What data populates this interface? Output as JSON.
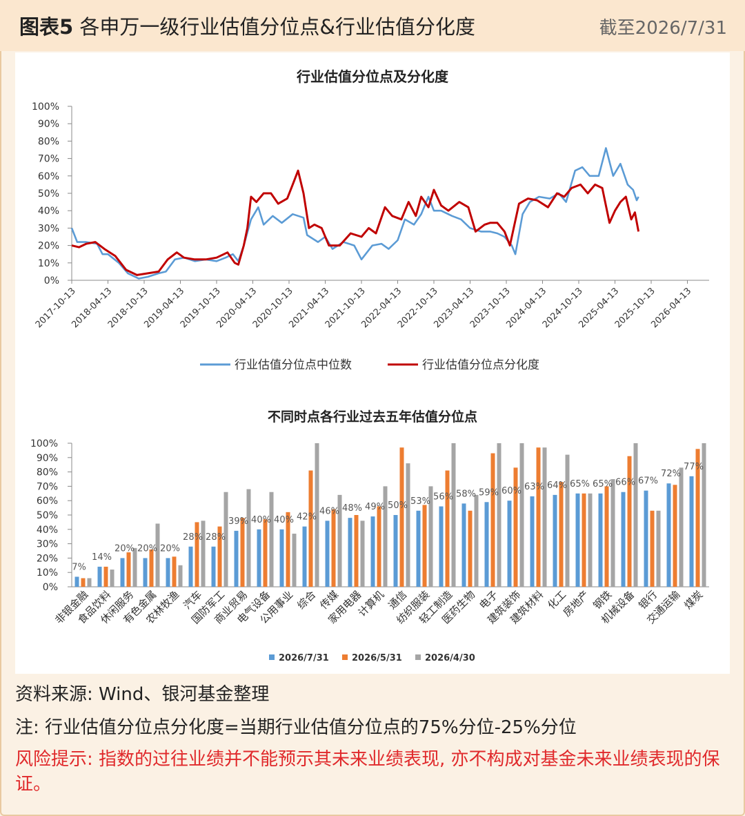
{
  "header": {
    "title_bold": "图表5",
    "title_rest": " 各申万一级行业估值分位点&行业估值分化度",
    "date": "截至2026/7/31"
  },
  "colors": {
    "median": "#5b9bd5",
    "dispersion": "#c00000",
    "s1": "#5b9bd5",
    "s2": "#ed7d31",
    "s3": "#a5a5a5"
  },
  "chart_data": [
    {
      "type": "line",
      "title": "行业估值分位点及分化度",
      "ylim": [
        0,
        100
      ],
      "y_ticks": [
        "0%",
        "10%",
        "20%",
        "30%",
        "40%",
        "50%",
        "60%",
        "70%",
        "80%",
        "90%",
        "100%"
      ],
      "x_ticks": [
        "2017-10-13",
        "2018-04-13",
        "2018-10-13",
        "2019-04-13",
        "2019-10-13",
        "2020-04-13",
        "2020-10-13",
        "2021-04-13",
        "2021-10-13",
        "2022-04-13",
        "2022-10-13",
        "2023-04-13",
        "2023-10-13",
        "2024-04-13",
        "2024-10-13",
        "2025-04-13",
        "2025-10-13",
        "2026-04-13"
      ],
      "legend_position": "bottom",
      "series": [
        {
          "name": "行业估值分位点中位数",
          "points": [
            [
              0,
              30
            ],
            [
              0.15,
              22
            ],
            [
              0.4,
              22
            ],
            [
              0.7,
              21
            ],
            [
              0.85,
              15
            ],
            [
              1,
              15
            ],
            [
              1.3,
              10
            ],
            [
              1.55,
              4
            ],
            [
              1.85,
              1
            ],
            [
              2.1,
              2
            ],
            [
              2.4,
              4
            ],
            [
              2.6,
              5
            ],
            [
              2.85,
              12
            ],
            [
              3.1,
              13
            ],
            [
              3.4,
              11
            ],
            [
              3.7,
              12
            ],
            [
              4.0,
              11
            ],
            [
              4.25,
              13
            ],
            [
              4.45,
              15
            ],
            [
              4.6,
              11
            ],
            [
              4.75,
              20
            ],
            [
              4.95,
              35
            ],
            [
              5.15,
              42
            ],
            [
              5.3,
              32
            ],
            [
              5.55,
              37
            ],
            [
              5.8,
              33
            ],
            [
              6.1,
              38
            ],
            [
              6.4,
              36
            ],
            [
              6.5,
              26
            ],
            [
              6.8,
              22
            ],
            [
              7.0,
              25
            ],
            [
              7.2,
              18
            ],
            [
              7.5,
              22
            ],
            [
              7.8,
              20
            ],
            [
              8.0,
              12
            ],
            [
              8.3,
              20
            ],
            [
              8.55,
              21
            ],
            [
              8.75,
              18
            ],
            [
              9.0,
              23
            ],
            [
              9.2,
              35
            ],
            [
              9.45,
              32
            ],
            [
              9.65,
              38
            ],
            [
              9.85,
              48
            ],
            [
              10.0,
              40
            ],
            [
              10.2,
              40
            ],
            [
              10.5,
              37
            ],
            [
              10.75,
              35
            ],
            [
              11.0,
              30
            ],
            [
              11.3,
              28
            ],
            [
              11.55,
              28
            ],
            [
              11.75,
              27
            ],
            [
              11.95,
              25
            ],
            [
              12.15,
              20
            ],
            [
              12.25,
              15
            ],
            [
              12.45,
              38
            ],
            [
              12.65,
              45
            ],
            [
              12.9,
              48
            ],
            [
              13.2,
              47
            ],
            [
              13.45,
              50
            ],
            [
              13.65,
              45
            ],
            [
              13.9,
              63
            ],
            [
              14.1,
              65
            ],
            [
              14.3,
              60
            ],
            [
              14.55,
              60
            ],
            [
              14.75,
              76
            ],
            [
              14.95,
              60
            ],
            [
              15.15,
              67
            ],
            [
              15.35,
              55
            ],
            [
              15.5,
              52
            ],
            [
              15.6,
              46
            ],
            [
              15.65,
              48
            ]
          ]
        },
        {
          "name": "行业估值分位点分化度",
          "points": [
            [
              0,
              20
            ],
            [
              0.2,
              19
            ],
            [
              0.4,
              21
            ],
            [
              0.65,
              22
            ],
            [
              0.9,
              18
            ],
            [
              1.2,
              14
            ],
            [
              1.5,
              6
            ],
            [
              1.8,
              3
            ],
            [
              2.1,
              4
            ],
            [
              2.4,
              5
            ],
            [
              2.65,
              12
            ],
            [
              2.9,
              16
            ],
            [
              3.1,
              13
            ],
            [
              3.4,
              12
            ],
            [
              3.7,
              12
            ],
            [
              4.0,
              13
            ],
            [
              4.3,
              16
            ],
            [
              4.5,
              10
            ],
            [
              4.6,
              9
            ],
            [
              4.75,
              20
            ],
            [
              4.85,
              30
            ],
            [
              4.95,
              48
            ],
            [
              5.1,
              45
            ],
            [
              5.3,
              50
            ],
            [
              5.5,
              50
            ],
            [
              5.7,
              44
            ],
            [
              5.95,
              47
            ],
            [
              6.1,
              55
            ],
            [
              6.25,
              63
            ],
            [
              6.4,
              50
            ],
            [
              6.55,
              30
            ],
            [
              6.7,
              32
            ],
            [
              6.9,
              30
            ],
            [
              7.1,
              20
            ],
            [
              7.4,
              20
            ],
            [
              7.7,
              27
            ],
            [
              8.0,
              25
            ],
            [
              8.2,
              30
            ],
            [
              8.4,
              27
            ],
            [
              8.65,
              42
            ],
            [
              8.85,
              37
            ],
            [
              9.1,
              35
            ],
            [
              9.3,
              45
            ],
            [
              9.5,
              37
            ],
            [
              9.65,
              48
            ],
            [
              9.85,
              42
            ],
            [
              10.0,
              52
            ],
            [
              10.2,
              43
            ],
            [
              10.4,
              40
            ],
            [
              10.7,
              45
            ],
            [
              10.95,
              42
            ],
            [
              11.15,
              28
            ],
            [
              11.4,
              32
            ],
            [
              11.55,
              33
            ],
            [
              11.75,
              33
            ],
            [
              11.95,
              28
            ],
            [
              12.1,
              20
            ],
            [
              12.35,
              44
            ],
            [
              12.6,
              47
            ],
            [
              12.85,
              46
            ],
            [
              13.15,
              42
            ],
            [
              13.4,
              50
            ],
            [
              13.6,
              48
            ],
            [
              13.8,
              53
            ],
            [
              14.05,
              55
            ],
            [
              14.25,
              50
            ],
            [
              14.45,
              55
            ],
            [
              14.65,
              53
            ],
            [
              14.85,
              33
            ],
            [
              15.0,
              40
            ],
            [
              15.15,
              45
            ],
            [
              15.3,
              48
            ],
            [
              15.45,
              35
            ],
            [
              15.55,
              39
            ],
            [
              15.65,
              28
            ]
          ]
        }
      ]
    },
    {
      "type": "bar",
      "title": "不同时点各行业过去五年估值分位点",
      "ylim": [
        0,
        100
      ],
      "y_ticks": [
        "0%",
        "10%",
        "20%",
        "30%",
        "40%",
        "50%",
        "60%",
        "70%",
        "80%",
        "90%",
        "100%"
      ],
      "categories": [
        "非银金融",
        "食品饮料",
        "休闲服务",
        "有色金属",
        "农林牧渔",
        "汽车",
        "国防军工",
        "商业贸易",
        "电气设备",
        "公用事业",
        "综合",
        "传媒",
        "家用电器",
        "计算机",
        "通信",
        "纺织服装",
        "轻工制造",
        "医药生物",
        "电子",
        "建筑装饰",
        "建筑材料",
        "化工",
        "房地产",
        "钢铁",
        "机械设备",
        "银行",
        "交通运输",
        "煤炭"
      ],
      "series": [
        {
          "name": "2026/7/31",
          "values": [
            7,
            14,
            20,
            20,
            20,
            28,
            28,
            39,
            40,
            40,
            42,
            46,
            48,
            49,
            50,
            53,
            56,
            58,
            59,
            60,
            63,
            64,
            65,
            65,
            66,
            67,
            72,
            77
          ]
        },
        {
          "name": "2026/5/31",
          "values": [
            6,
            14,
            24,
            26,
            21,
            45,
            42,
            48,
            47,
            52,
            81,
            54,
            50,
            56,
            97,
            57,
            81,
            53,
            93,
            83,
            97,
            73,
            65,
            70,
            91,
            53,
            71,
            96
          ]
        },
        {
          "name": "2026/4/30",
          "values": [
            6,
            12,
            27,
            44,
            15,
            46,
            66,
            68,
            66,
            37,
            100,
            64,
            46,
            70,
            86,
            70,
            100,
            64,
            100,
            100,
            97,
            92,
            65,
            75,
            100,
            53,
            83,
            100
          ]
        }
      ],
      "labels": [
        "7%",
        "14%",
        "20%",
        "20%",
        "20%",
        "28%",
        "28%",
        "39%",
        "40%",
        "40%",
        "42%",
        "46%",
        "48%",
        "49%",
        "50%",
        "53%",
        "56%",
        "58%",
        "59%",
        "60%",
        "63%",
        "64%",
        "65%",
        "65%",
        "66%",
        "67%",
        "72%",
        "77%"
      ],
      "legend_position": "bottom"
    }
  ],
  "footer": {
    "source": "资料来源: Wind、银河基金整理",
    "note": "注: 行业估值分位点分化度=当期行业估值分位点的75%分位-25%分位",
    "risk": "风险提示: 指数的过往业绩并不能预示其未来业绩表现, 亦不构成对基金未来业绩表现的保证。"
  }
}
